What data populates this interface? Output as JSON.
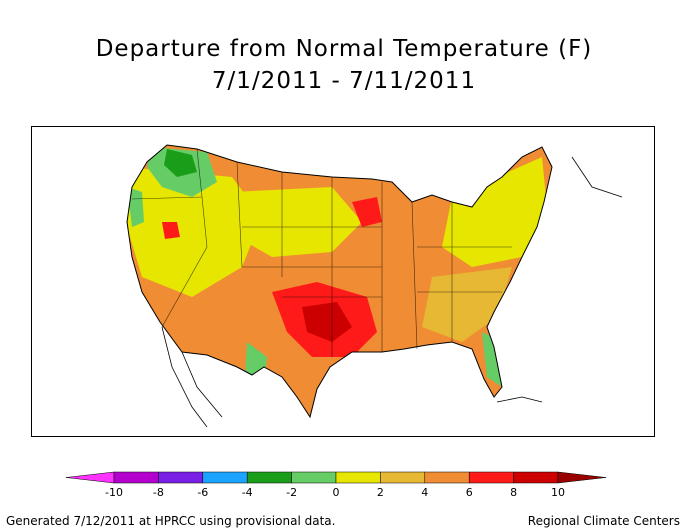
{
  "title": {
    "line1": "Departure from Normal Temperature (F)",
    "line2": "7/1/2011 - 7/11/2011"
  },
  "legend": {
    "bins": [
      {
        "min": -12,
        "max": -10,
        "color": "#ff33ff"
      },
      {
        "min": -10,
        "max": -8,
        "color": "#b300cc"
      },
      {
        "min": -8,
        "max": -6,
        "color": "#7a1fe6"
      },
      {
        "min": -6,
        "max": -4,
        "color": "#1aa3ff"
      },
      {
        "min": -4,
        "max": -2,
        "color": "#1a9e1a"
      },
      {
        "min": -2,
        "max": 0,
        "color": "#66cc66"
      },
      {
        "min": 0,
        "max": 2,
        "color": "#e6e600"
      },
      {
        "min": 2,
        "max": 4,
        "color": "#e6b833"
      },
      {
        "min": 4,
        "max": 6,
        "color": "#f08c33"
      },
      {
        "min": 6,
        "max": 8,
        "color": "#ff1a1a"
      },
      {
        "min": 8,
        "max": 10,
        "color": "#cc0000"
      },
      {
        "min": 10,
        "max": 12,
        "color": "#990000"
      }
    ],
    "tick_labels": [
      "-10",
      "-8",
      "-6",
      "-4",
      "-2",
      "0",
      "2",
      "4",
      "6",
      "8",
      "10"
    ]
  },
  "footer": {
    "left": "Generated 7/12/2011 at HPRCC using provisional data.",
    "right": "Regional Climate Centers"
  }
}
